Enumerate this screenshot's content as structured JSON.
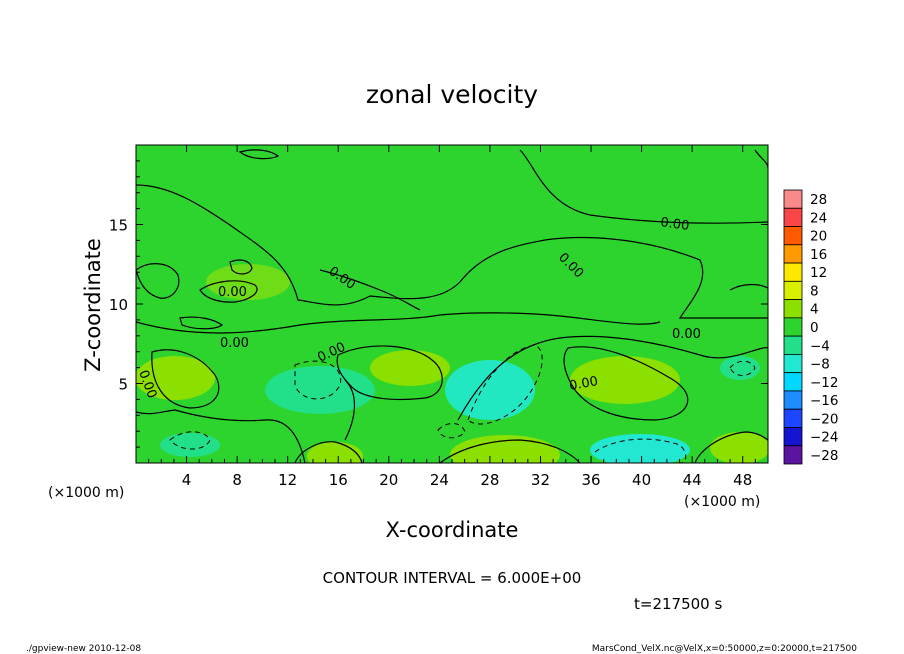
{
  "chart_data": {
    "type": "heatmap",
    "title": "zonal velocity",
    "xlabel": "X-coordinate",
    "ylabel": "Z-coordinate",
    "x_unit": "(×1000 m)",
    "y_unit": "(×1000 m)",
    "xlim": [
      0,
      50
    ],
    "ylim": [
      0,
      20
    ],
    "x_ticks": [
      4,
      8,
      12,
      16,
      20,
      24,
      28,
      32,
      36,
      40,
      44,
      48
    ],
    "y_ticks": [
      5,
      10,
      15
    ],
    "contour_interval_text": "CONTOUR INTERVAL = 6.000E+00",
    "contour_label": "0.00",
    "time_text": "t=217500 s",
    "colorbar": {
      "levels": [
        28,
        24,
        20,
        16,
        12,
        8,
        4,
        0,
        -4,
        -8,
        -12,
        -16,
        -20,
        -24,
        -28
      ],
      "colors": [
        "#f98a8a",
        "#fa4646",
        "#ff5a00",
        "#ff9a00",
        "#ffe800",
        "#d8f000",
        "#8ce000",
        "#2ed42e",
        "#22e08a",
        "#22e8d2",
        "#00d8ff",
        "#1c8cff",
        "#1c46ff",
        "#1414d2",
        "#5a14a0"
      ]
    },
    "footer_left": "./gpview-new   2010-12-08",
    "footer_right": "MarsCond_VelX.nc@VelX,x=0:50000,z=0:20000,t=217500"
  }
}
